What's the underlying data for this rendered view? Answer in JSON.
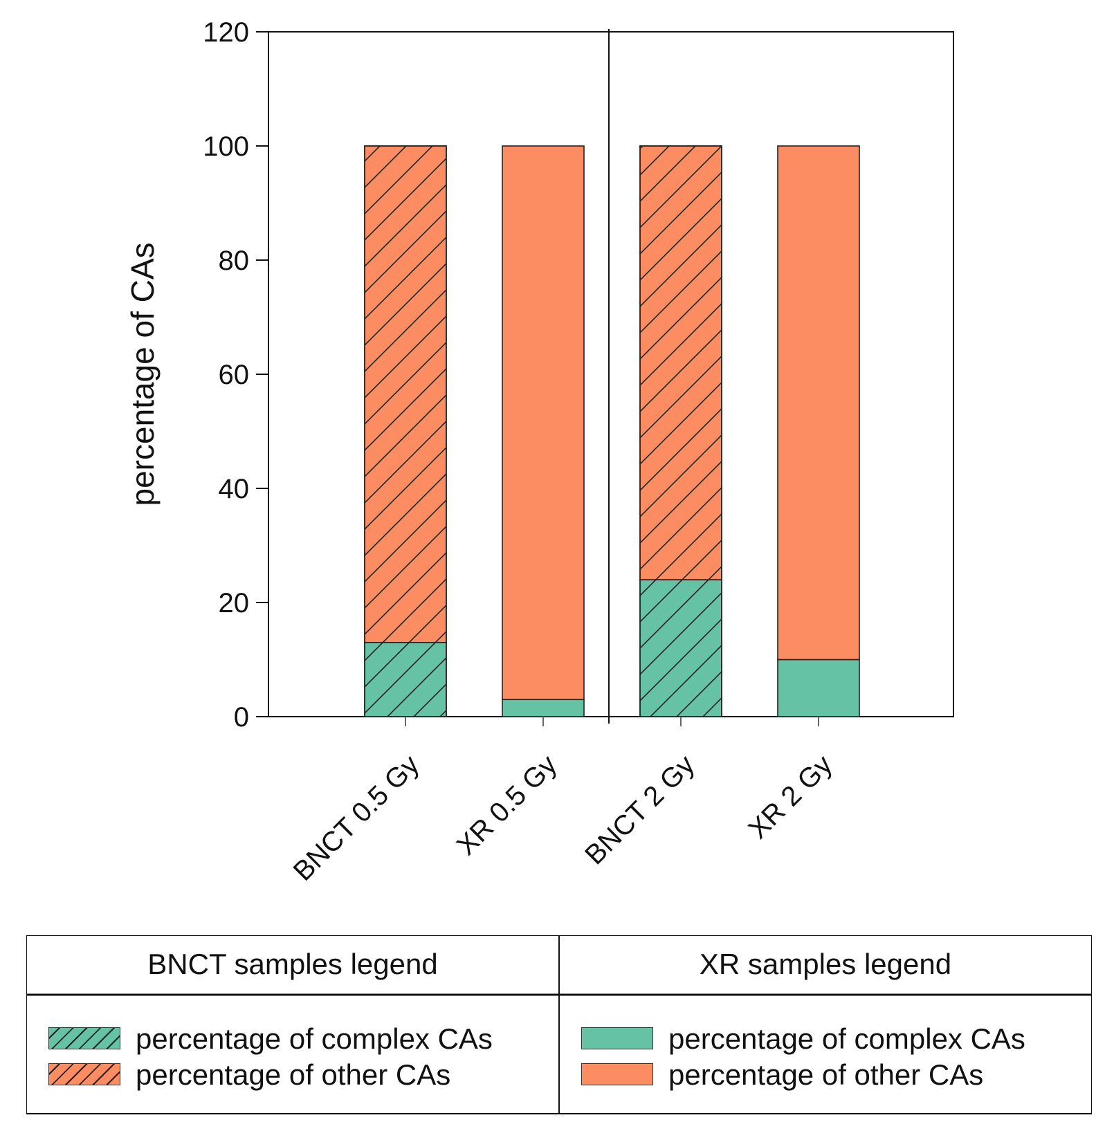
{
  "chart_data": {
    "type": "bar",
    "stacked": true,
    "ylabel": "percentage of CAs",
    "xlabel": "",
    "ylim": [
      0,
      120
    ],
    "yticks": [
      "0",
      "20",
      "40",
      "60",
      "80",
      "100",
      "120"
    ],
    "categories": [
      "BNCT 0.5 Gy",
      "XR 0.5 Gy",
      "BNCT 2 Gy",
      "XR 2 Gy"
    ],
    "hatched": [
      true,
      false,
      true,
      false
    ],
    "series": [
      {
        "name": "percentage of complex CAs",
        "values": [
          13,
          3,
          24,
          10
        ],
        "color": "#66c2a5"
      },
      {
        "name": "percentage of other CAs",
        "values": [
          87,
          97,
          76,
          90
        ],
        "color": "#fc8d62"
      }
    ]
  },
  "legend": {
    "bnct": {
      "title": "BNCT samples legend",
      "complex_label": "percentage of complex CAs",
      "other_label": "percentage of other CAs"
    },
    "xr": {
      "title": "XR samples legend",
      "complex_label": "percentage of complex CAs",
      "other_label": "percentage of other CAs"
    }
  }
}
